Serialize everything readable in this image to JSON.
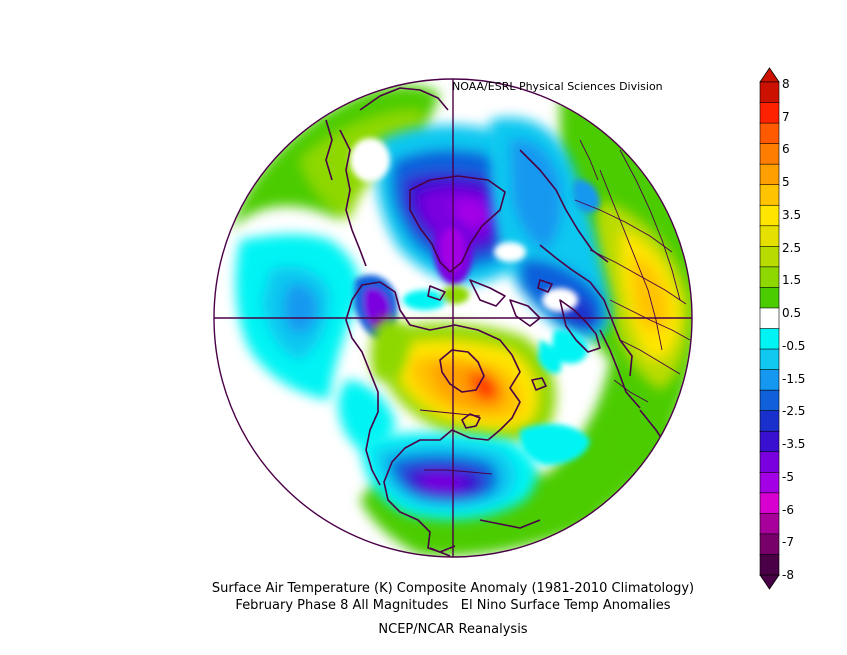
{
  "credit": "NOAA/ESRL Physical Sciences Division",
  "captions": {
    "line1": "Surface Air Temperature (K) Composite Anomaly (1981-2010 Climatology)",
    "line2": "February Phase 8 All Magnitudes   El Nino Surface Temp Anomalies",
    "line3": "NCEP/NCAR Reanalysis"
  },
  "colorbar": {
    "labels": [
      "8",
      "7",
      "6",
      "5",
      "3.5",
      "2.5",
      "1.5",
      "0.5",
      "-0.5",
      "-1.5",
      "-2.5",
      "-3.5",
      "-5",
      "-6",
      "-7",
      "-8"
    ],
    "colors": {
      "warm_top": "#cc1100",
      "warm_red": "#ff2200",
      "orange": "#ff5a00",
      "orange2": "#ff7d00",
      "amber": "#ffa000",
      "gold": "#ffc300",
      "yellow": "#ffe500",
      "yellow_green": "#e6e000",
      "lime": "#b9dc00",
      "green_light": "#8ed800",
      "green": "#4bcc00",
      "neutral": "#ffffff",
      "cyan": "#00f4f4",
      "sky": "#10c8f0",
      "blue_light": "#1498f0",
      "blue": "#1060dc",
      "blue_dark": "#1a30cc",
      "indigo": "#3a10d0",
      "purple": "#7a00e0",
      "violet": "#a400e6",
      "magenta": "#d800d0",
      "magenta_dark": "#a8009a",
      "plum": "#78006a",
      "cold_bottom": "#4a0046"
    }
  }
}
